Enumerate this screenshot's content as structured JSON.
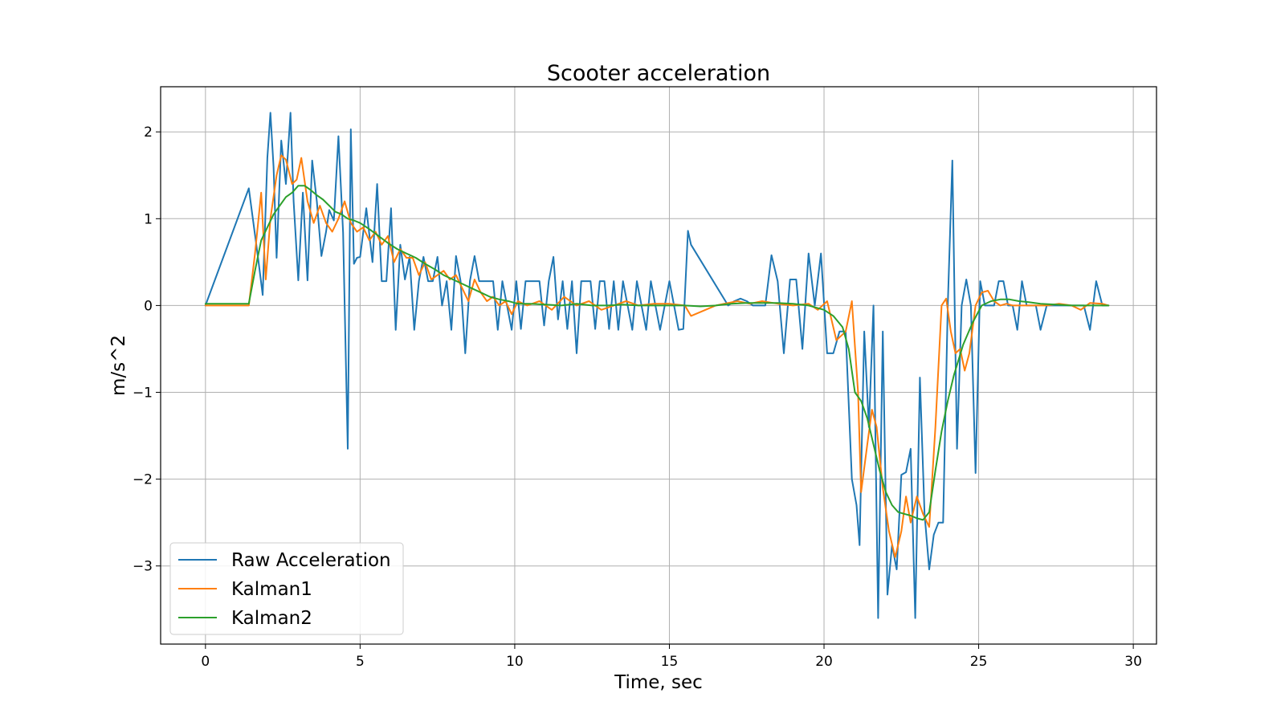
{
  "chart_data": {
    "type": "line",
    "title": "Scooter acceleration",
    "xlabel": "Time, sec",
    "ylabel": "m/s^2",
    "xlim": [
      -1.45,
      30.75
    ],
    "ylim": [
      -3.9,
      2.52
    ],
    "xticks": [
      0,
      5,
      10,
      15,
      20,
      25,
      30
    ],
    "xtick_labels": [
      "0",
      "5",
      "10",
      "15",
      "20",
      "25",
      "30"
    ],
    "yticks": [
      -3,
      -2,
      -1,
      0,
      1,
      2
    ],
    "ytick_labels": [
      "−3",
      "−2",
      "−1",
      "0",
      "1",
      "2"
    ],
    "grid": true,
    "legend_position": "lower-left",
    "series": [
      {
        "name": "Raw Acceleration",
        "color": "#1f77b4",
        "x": [
          0,
          1.4,
          1.7,
          1.85,
          2.0,
          2.1,
          2.2,
          2.3,
          2.45,
          2.6,
          2.75,
          2.85,
          3.0,
          3.15,
          3.3,
          3.45,
          3.6,
          3.75,
          3.9,
          4.0,
          4.15,
          4.3,
          4.45,
          4.6,
          4.7,
          4.8,
          4.9,
          5.0,
          5.2,
          5.4,
          5.55,
          5.7,
          5.85,
          6.0,
          6.15,
          6.3,
          6.45,
          6.6,
          6.75,
          6.9,
          7.05,
          7.2,
          7.35,
          7.5,
          7.65,
          7.8,
          7.95,
          8.1,
          8.25,
          8.4,
          8.55,
          8.7,
          8.85,
          9.0,
          9.15,
          9.3,
          9.45,
          9.6,
          9.75,
          9.9,
          10.05,
          10.2,
          10.35,
          10.5,
          10.65,
          10.8,
          10.95,
          11.1,
          11.25,
          11.4,
          11.55,
          11.7,
          11.85,
          12.0,
          12.15,
          12.3,
          12.45,
          12.6,
          12.75,
          12.9,
          13.05,
          13.2,
          13.35,
          13.5,
          13.65,
          13.8,
          13.95,
          14.1,
          14.25,
          14.4,
          14.55,
          14.7,
          14.85,
          15.0,
          15.15,
          15.3,
          15.45,
          15.6,
          15.7,
          16.9,
          17.1,
          17.3,
          17.5,
          17.7,
          17.9,
          18.1,
          18.3,
          18.5,
          18.7,
          18.9,
          19.1,
          19.3,
          19.5,
          19.7,
          19.9,
          20.1,
          20.3,
          20.5,
          20.7,
          20.9,
          21.05,
          21.15,
          21.3,
          21.45,
          21.6,
          21.75,
          21.9,
          22.05,
          22.2,
          22.35,
          22.5,
          22.65,
          22.8,
          22.95,
          23.1,
          23.25,
          23.4,
          23.55,
          23.7,
          23.85,
          24.0,
          24.15,
          24.3,
          24.45,
          24.6,
          24.75,
          24.9,
          25.05,
          25.2,
          25.35,
          25.5,
          25.65,
          25.8,
          25.95,
          26.1,
          26.25,
          26.4,
          26.55,
          26.7,
          26.85,
          27.0,
          27.2,
          27.4,
          27.6,
          27.8,
          28.0,
          28.2,
          28.4,
          28.6,
          28.8,
          29.0,
          29.2
        ],
        "y": [
          0,
          1.35,
          0.55,
          0.12,
          1.7,
          2.22,
          1.6,
          0.55,
          1.9,
          1.4,
          2.22,
          1.2,
          0.29,
          1.3,
          0.29,
          1.67,
          1.2,
          0.57,
          0.85,
          1.1,
          0.98,
          1.95,
          0.84,
          -1.65,
          2.03,
          0.48,
          0.55,
          0.56,
          1.12,
          0.5,
          1.4,
          0.28,
          0.28,
          1.12,
          -0.28,
          0.7,
          0.3,
          0.56,
          -0.28,
          0.28,
          0.56,
          0.28,
          0.28,
          0.56,
          0,
          0.28,
          -0.28,
          0.57,
          0.28,
          -0.55,
          0.28,
          0.57,
          0.28,
          0.28,
          0.28,
          0.28,
          -0.28,
          0.28,
          0,
          -0.28,
          0.28,
          -0.27,
          0.28,
          0.28,
          0.28,
          0.28,
          -0.23,
          0.28,
          0.56,
          -0.16,
          0.28,
          -0.27,
          0.28,
          -0.55,
          0.28,
          0.28,
          0.28,
          -0.27,
          0.28,
          0.28,
          -0.27,
          0.28,
          -0.28,
          0.28,
          0,
          -0.28,
          0.28,
          0,
          -0.28,
          0.28,
          0,
          -0.28,
          0,
          0.28,
          0,
          -0.28,
          -0.27,
          0.86,
          0.7,
          0,
          0.05,
          0.08,
          0.05,
          0,
          0,
          0,
          0.58,
          0.28,
          -0.55,
          0.3,
          0.3,
          -0.5,
          0.6,
          0,
          0.6,
          -0.55,
          -0.55,
          -0.3,
          -0.3,
          -2.0,
          -2.3,
          -2.76,
          -0.3,
          -1.4,
          0,
          -3.6,
          -0.3,
          -3.33,
          -2.76,
          -3.04,
          -1.95,
          -1.92,
          -1.65,
          -3.6,
          -0.83,
          -2.4,
          -3.04,
          -2.64,
          -2.5,
          -2.5,
          0,
          1.67,
          -1.65,
          0,
          0.3,
          0,
          -1.93,
          0.28,
          0,
          0,
          0,
          0.28,
          0.28,
          0,
          0,
          -0.28,
          0.28,
          0,
          0,
          0,
          -0.28,
          0,
          0,
          0,
          0,
          0,
          0,
          0,
          -0.28,
          0.28,
          0,
          0
        ]
      },
      {
        "name": "Kalman1",
        "color": "#ff7f0e",
        "x": [
          0,
          1.4,
          1.6,
          1.8,
          1.95,
          2.1,
          2.3,
          2.45,
          2.6,
          2.8,
          2.95,
          3.1,
          3.3,
          3.5,
          3.7,
          3.9,
          4.1,
          4.3,
          4.5,
          4.7,
          4.9,
          5.1,
          5.3,
          5.5,
          5.7,
          5.9,
          6.1,
          6.3,
          6.5,
          6.7,
          6.9,
          7.1,
          7.3,
          7.5,
          7.7,
          7.9,
          8.1,
          8.3,
          8.5,
          8.7,
          8.9,
          9.1,
          9.3,
          9.5,
          9.7,
          9.9,
          10.1,
          10.4,
          10.8,
          11.2,
          11.6,
          12.0,
          12.4,
          12.8,
          13.2,
          13.6,
          14.0,
          14.5,
          15.0,
          15.5,
          15.7,
          16.5,
          17.2,
          17.6,
          18.0,
          18.5,
          19.0,
          19.5,
          19.8,
          20.1,
          20.4,
          20.7,
          20.9,
          21.1,
          21.2,
          21.4,
          21.55,
          21.7,
          21.9,
          22.1,
          22.3,
          22.5,
          22.65,
          22.8,
          23.0,
          23.2,
          23.4,
          23.6,
          23.8,
          23.95,
          24.1,
          24.25,
          24.4,
          24.55,
          24.7,
          24.9,
          25.1,
          25.3,
          25.5,
          25.7,
          25.9,
          26.1,
          26.4,
          26.8,
          27.2,
          27.6,
          28.0,
          28.3,
          28.6,
          29.0,
          29.2
        ],
        "y": [
          0,
          0,
          0.6,
          1.3,
          0.3,
          1.0,
          1.5,
          1.73,
          1.68,
          1.4,
          1.45,
          1.7,
          1.2,
          0.95,
          1.15,
          0.95,
          0.85,
          1.0,
          1.2,
          0.95,
          0.85,
          0.9,
          0.75,
          0.85,
          0.7,
          0.8,
          0.5,
          0.65,
          0.55,
          0.55,
          0.35,
          0.5,
          0.3,
          0.35,
          0.4,
          0.3,
          0.35,
          0.2,
          0.05,
          0.3,
          0.15,
          0.05,
          0.1,
          0.0,
          0.05,
          -0.1,
          0.05,
          0.0,
          0.05,
          -0.05,
          0.1,
          0.0,
          0.05,
          -0.05,
          0.0,
          0.05,
          0.0,
          0.02,
          0.02,
          0.0,
          -0.12,
          0.0,
          0.05,
          0.02,
          0.05,
          0.02,
          0.0,
          0.02,
          -0.05,
          0.05,
          -0.4,
          -0.3,
          0.05,
          -1.0,
          -2.15,
          -1.6,
          -1.2,
          -1.4,
          -2.1,
          -2.6,
          -2.9,
          -2.6,
          -2.2,
          -2.5,
          -2.2,
          -2.4,
          -2.55,
          -1.4,
          0.0,
          0.08,
          -0.3,
          -0.55,
          -0.5,
          -0.75,
          -0.55,
          0.0,
          0.15,
          0.17,
          0.05,
          0.0,
          0.02,
          0.0,
          0.0,
          0.0,
          0.0,
          0.02,
          0.0,
          -0.05,
          0.03,
          0.02,
          0.0
        ]
      },
      {
        "name": "Kalman2",
        "color": "#2ca02c",
        "x": [
          0,
          1.4,
          1.6,
          1.8,
          2.0,
          2.2,
          2.4,
          2.6,
          2.8,
          3.0,
          3.2,
          3.4,
          3.6,
          3.8,
          4.0,
          4.2,
          4.4,
          4.6,
          4.8,
          5.0,
          5.3,
          5.6,
          5.9,
          6.2,
          6.5,
          6.8,
          7.1,
          7.4,
          7.7,
          8.0,
          8.3,
          8.6,
          8.9,
          9.2,
          9.5,
          9.8,
          10.1,
          10.5,
          11.0,
          11.5,
          12.0,
          12.5,
          13.0,
          13.5,
          14.0,
          14.5,
          15.0,
          15.5,
          16.0,
          16.5,
          17.0,
          17.5,
          18.0,
          18.5,
          19.0,
          19.5,
          20.0,
          20.3,
          20.6,
          20.8,
          21.0,
          21.2,
          21.4,
          21.6,
          21.8,
          22.0,
          22.2,
          22.4,
          22.6,
          22.8,
          23.0,
          23.2,
          23.4,
          23.6,
          23.8,
          24.0,
          24.2,
          24.5,
          24.8,
          25.1,
          25.4,
          25.7,
          26.0,
          26.3,
          26.6,
          27.0,
          27.5,
          28.0,
          28.5,
          29.0,
          29.2
        ],
        "y": [
          0.02,
          0.02,
          0.4,
          0.75,
          0.9,
          1.05,
          1.15,
          1.25,
          1.3,
          1.38,
          1.38,
          1.33,
          1.27,
          1.22,
          1.15,
          1.08,
          1.05,
          1.0,
          0.98,
          0.95,
          0.88,
          0.8,
          0.72,
          0.65,
          0.6,
          0.55,
          0.48,
          0.42,
          0.35,
          0.3,
          0.25,
          0.2,
          0.15,
          0.1,
          0.07,
          0.05,
          0.02,
          0.02,
          0.01,
          0.0,
          0.02,
          0.0,
          0.0,
          0.01,
          0.0,
          0.0,
          0.0,
          0.0,
          -0.01,
          0.0,
          0.02,
          0.03,
          0.03,
          0.03,
          0.02,
          0.0,
          -0.05,
          -0.12,
          -0.25,
          -0.5,
          -1.0,
          -1.1,
          -1.3,
          -1.6,
          -1.9,
          -2.15,
          -2.3,
          -2.38,
          -2.4,
          -2.42,
          -2.45,
          -2.47,
          -2.38,
          -1.9,
          -1.45,
          -1.1,
          -0.8,
          -0.45,
          -0.2,
          0.0,
          0.05,
          0.07,
          0.07,
          0.05,
          0.04,
          0.02,
          0.01,
          0.0,
          0.0,
          0.0,
          0.0
        ]
      }
    ]
  }
}
